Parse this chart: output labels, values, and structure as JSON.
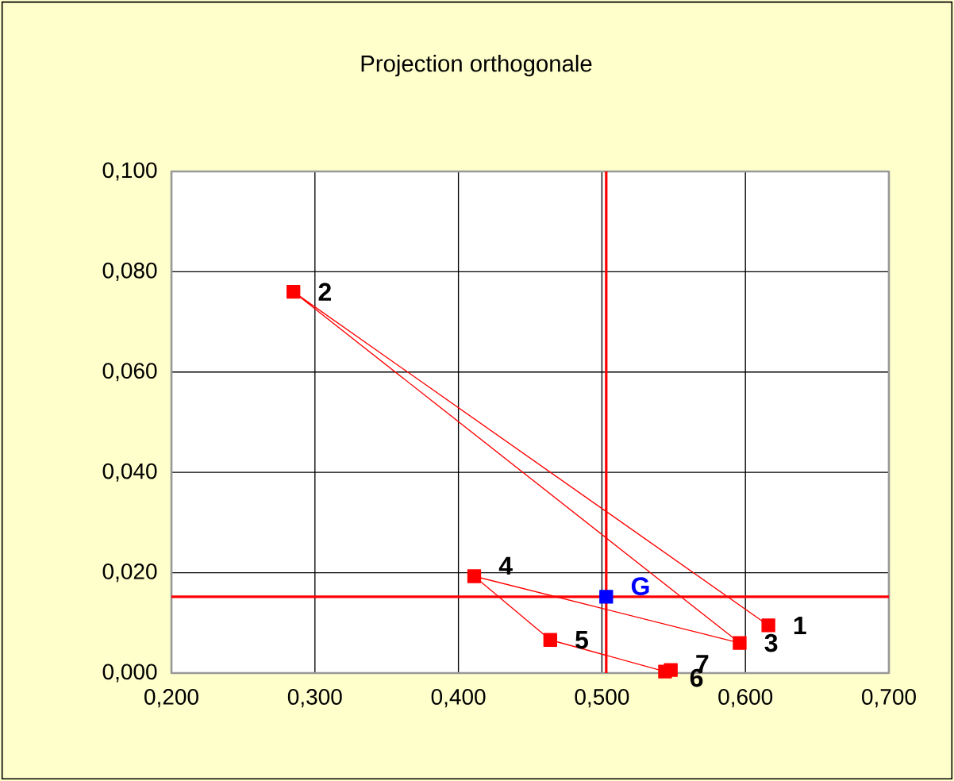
{
  "chart_data": {
    "type": "line",
    "title": "Projection orthogonale",
    "series": [
      {
        "color": "#ff0000",
        "x": [
          0.616,
          0.285,
          0.596,
          0.411,
          0.464,
          0.544,
          0.548
        ],
        "values": [
          0.0095,
          0.076,
          0.006,
          0.0193,
          0.0066,
          0.0003,
          0.0006
        ]
      },
      {
        "type": "scatter",
        "color": "#0000ff",
        "x": [
          0.503
        ],
        "values": [
          0.0152
        ]
      }
    ],
    "annotations": [
      {
        "text": "1",
        "x": 0.616,
        "y": 0.0095
      },
      {
        "text": "2",
        "x": 0.285,
        "y": 0.076
      },
      {
        "text": "3",
        "x": 0.596,
        "y": 0.006
      },
      {
        "text": "4",
        "x": 0.411,
        "y": 0.0193
      },
      {
        "text": "5",
        "x": 0.464,
        "y": 0.0066
      },
      {
        "text": "6",
        "x": 0.544,
        "y": 0.0003
      },
      {
        "text": "7",
        "x": 0.548,
        "y": 0.0006
      },
      {
        "text": "G",
        "x": 0.503,
        "y": 0.0152
      }
    ],
    "ref_lines": [
      {
        "axis": "x",
        "value": 0.503,
        "color": "#ff0000"
      },
      {
        "axis": "y",
        "value": 0.0152,
        "color": "#ff0000"
      }
    ],
    "xlim": [
      0.2,
      0.7
    ],
    "ylim": [
      0,
      0.1
    ],
    "xticks": [
      {
        "value": 0.2,
        "label": "0,200"
      },
      {
        "value": 0.3,
        "label": "0,300"
      },
      {
        "value": 0.4,
        "label": "0,400"
      },
      {
        "value": 0.5,
        "label": "0,500"
      },
      {
        "value": 0.6,
        "label": "0,600"
      },
      {
        "value": 0.7,
        "label": "0,700"
      }
    ],
    "yticks": [
      {
        "value": 0,
        "label": "0,000"
      },
      {
        "value": 0.02,
        "label": "0,020"
      },
      {
        "value": 0.04,
        "label": "0,040"
      },
      {
        "value": 0.06,
        "label": "0,060"
      },
      {
        "value": 0.08,
        "label": "0,080"
      },
      {
        "value": 0.1,
        "label": "0,100"
      }
    ],
    "grid": true,
    "marker": "square"
  }
}
